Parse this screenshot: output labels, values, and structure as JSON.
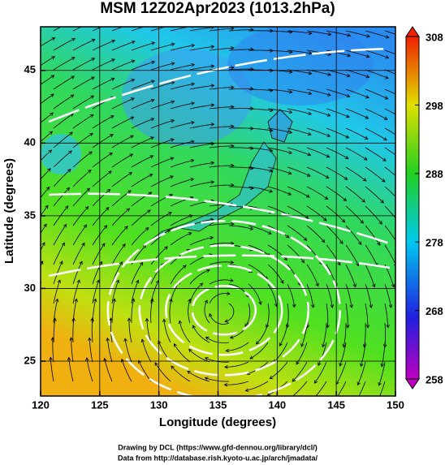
{
  "chart_data": {
    "type": "field_map",
    "title": "MSM 12Z02Apr2023 (1013.2hPa)",
    "xlabel": "Longitude (degrees)",
    "ylabel": "Latitude  (degrees)",
    "xlim": [
      120,
      150
    ],
    "ylim": [
      22.6,
      48
    ],
    "xticks": [
      120,
      125,
      130,
      135,
      140,
      145,
      150
    ],
    "yticks": [
      25,
      30,
      35,
      40,
      45
    ],
    "grid": true,
    "colorbar": {
      "lim": [
        258,
        308
      ],
      "ticks": [
        258,
        268,
        278,
        288,
        298,
        308
      ]
    },
    "credits": [
      "Drawing by DCL (https://www.gfd-dennou.org/library/dcl/)",
      "Data from http://database.rish.kyoto-u.ac.jp/arch/jmadata/"
    ]
  }
}
